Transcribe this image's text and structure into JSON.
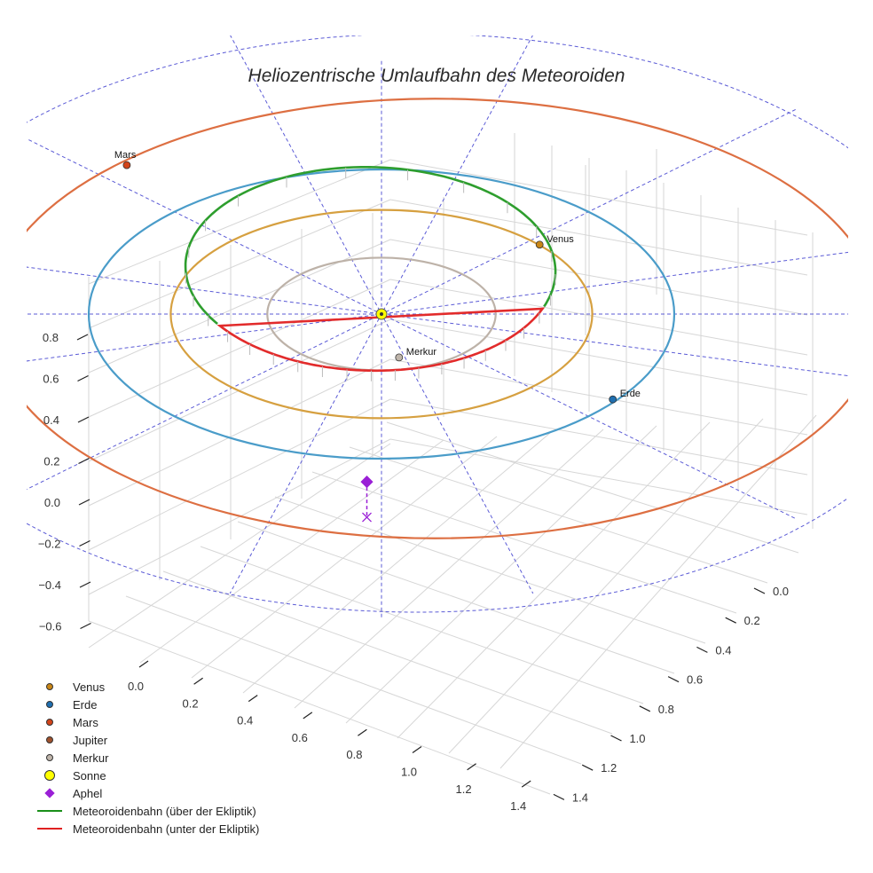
{
  "chart_data": {
    "type": "scatter",
    "title": "Heliozentrische Umlaufbahn des Meteoroiden",
    "axes": {
      "x_ticks": [
        "0.0",
        "0.2",
        "0.4",
        "0.6",
        "0.8",
        "1.0",
        "1.2",
        "1.4"
      ],
      "y_ticks": [
        "0.0",
        "0.2",
        "0.4",
        "0.6",
        "0.8",
        "1.0",
        "1.2",
        "1.4"
      ],
      "z_ticks": [
        "0.8",
        "0.6",
        "0.4",
        "0.2",
        "0.0",
        "−0.2",
        "−0.4",
        "−0.6"
      ],
      "xlabel": "",
      "ylabel": "",
      "zlabel": "",
      "grid": true
    },
    "orbits": [
      {
        "name": "Merkur",
        "semi_major_au": 0.39,
        "color": "#bdb2a8"
      },
      {
        "name": "Venus",
        "semi_major_au": 0.72,
        "color": "#d6a040"
      },
      {
        "name": "Erde",
        "semi_major_au": 1.0,
        "color": "#4a9cc9"
      },
      {
        "name": "Mars",
        "semi_major_au": 1.52,
        "color": "#dd6f42"
      }
    ],
    "planets": [
      {
        "name": "Mars",
        "label": "Mars",
        "color": "#d2441a"
      },
      {
        "name": "Venus",
        "label": "Venus",
        "color": "#c98616"
      },
      {
        "name": "Merkur",
        "label": "Merkur",
        "color": "#bfb5ab"
      },
      {
        "name": "Erde",
        "label": "Erde",
        "color": "#1f6fb0"
      }
    ],
    "meteoroid": {
      "perihelion_au": 0.39,
      "aphelion_au": 1.02,
      "above_color": "#2e9e2e",
      "below_color": "#e22b2b",
      "aphelion_color": "#9a1fd6"
    },
    "legend": [
      {
        "label": "Venus",
        "kind": "dot",
        "color": "#c98616"
      },
      {
        "label": "Erde",
        "kind": "dot",
        "color": "#1f6fb0"
      },
      {
        "label": "Mars",
        "kind": "dot",
        "color": "#d2441a"
      },
      {
        "label": "Jupiter",
        "kind": "dot",
        "color": "#a0522d"
      },
      {
        "label": "Merkur",
        "kind": "dot",
        "color": "#bfb5ab"
      },
      {
        "label": "Sonne",
        "kind": "bigdot",
        "color": "#ffff00"
      },
      {
        "label": "Aphel",
        "kind": "diamond",
        "color": "#9a1fd6"
      },
      {
        "label": "Meteoroidenbahn (über der Ekliptik)",
        "kind": "line",
        "color": "#1a8f1a"
      },
      {
        "label": "Meteoroidenbahn (unter der Ekliptik)",
        "kind": "line",
        "color": "#e02020"
      }
    ],
    "legend_position": "bottom-left"
  }
}
